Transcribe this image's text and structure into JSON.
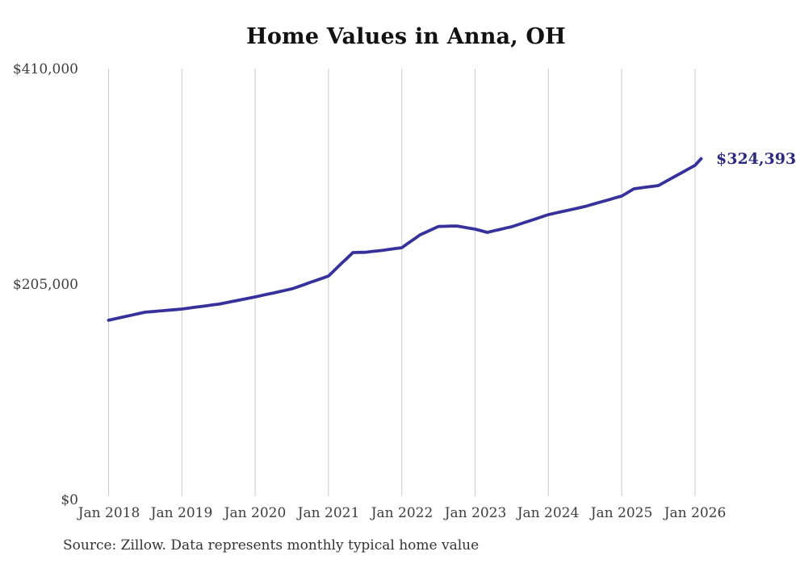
{
  "chart_data": {
    "type": "line",
    "title": "Home Values in Anna, OH",
    "source": "Source: Zillow. Data represents monthly typical home value",
    "frequency": "monthly",
    "x_range": [
      "Jan 2018",
      "Feb 2026"
    ],
    "x_tick_labels": [
      "Jan 2018",
      "Jan 2019",
      "Jan 2020",
      "Jan 2021",
      "Jan 2022",
      "Jan 2023",
      "Jan 2024",
      "Jan 2025",
      "Jan 2026"
    ],
    "y_tick_labels_top_to_bottom": [
      "$410,000",
      "$205,000",
      "$0"
    ],
    "y_ticks": [
      0,
      205000,
      410000
    ],
    "ylim": [
      0,
      410000
    ],
    "grid": "vertical-only",
    "legend": "none",
    "end_label": "$324,393",
    "end_value": 324393,
    "line_color": "#37319b",
    "end_label_color": "#2e2a80",
    "grid_color": "#cccccc",
    "series": [
      {
        "name": "Typical home value",
        "start_month": "2018-01",
        "values": [
          171000,
          172300,
          173600,
          174800,
          176100,
          177400,
          178600,
          179100,
          179600,
          180100,
          180600,
          181100,
          181600,
          182400,
          183200,
          183900,
          184700,
          185500,
          186200,
          187400,
          188500,
          189700,
          190800,
          192000,
          193100,
          194400,
          195700,
          196900,
          198200,
          199500,
          200800,
          202800,
          204800,
          206900,
          208900,
          210900,
          213000,
          218600,
          224200,
          229700,
          235300,
          235400,
          235500,
          236200,
          236800,
          237500,
          238300,
          239100,
          239900,
          244000,
          248000,
          252100,
          254700,
          257400,
          260000,
          260200,
          260400,
          260500,
          259500,
          258500,
          257500,
          256000,
          254400,
          255800,
          257100,
          258500,
          259800,
          261700,
          263600,
          265500,
          267400,
          269400,
          271300,
          272600,
          273900,
          275100,
          276400,
          277700,
          279000,
          280700,
          282300,
          284000,
          285600,
          287300,
          288900,
          292400,
          295800,
          296600,
          297400,
          298100,
          298900,
          302100,
          305300,
          308500,
          311700,
          314900,
          318100,
          324393
        ]
      }
    ]
  }
}
